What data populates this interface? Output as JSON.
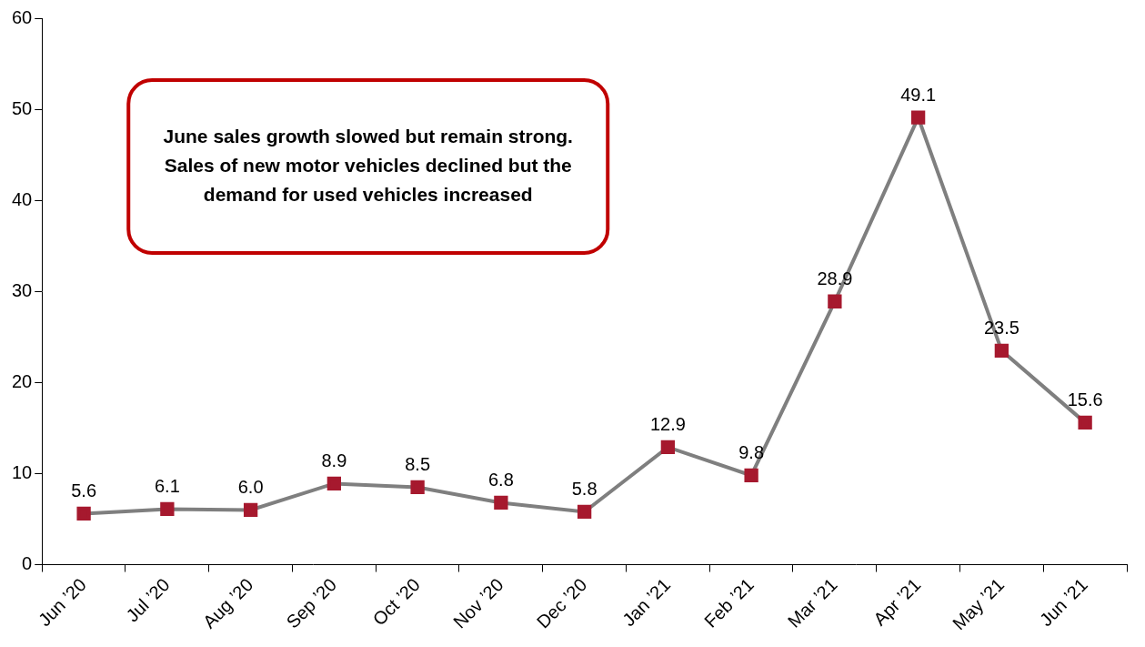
{
  "chart_data": {
    "type": "line",
    "annotation": "June sales growth slowed but remain strong. Sales of new motor vehicles declined but the demand for used vehicles increased",
    "categories": [
      "Jun ’20",
      "Jul ’20",
      "Aug ’20",
      "Sep ’20",
      "Oct ’20",
      "Nov ’20",
      "Dec ’20",
      "Jan ’21",
      "Feb ’21",
      "Mar ’21",
      "Apr ’21",
      "May ’21",
      "Jun ’21"
    ],
    "values": [
      5.6,
      6.1,
      6.0,
      8.9,
      8.5,
      6.8,
      5.8,
      12.9,
      9.8,
      28.9,
      49.1,
      23.5,
      15.6
    ],
    "value_labels": [
      "5.6",
      "6.1",
      "6.0",
      "8.9",
      "8.5",
      "6.8",
      "5.8",
      "12.9",
      "9.8",
      "28.9",
      "49.1",
      "23.5",
      "15.6"
    ],
    "color": "#7f7f7f",
    "marker": "square",
    "data_labels": true,
    "grid": false,
    "ylim": [
      0,
      60
    ],
    "yticks": [
      0,
      10,
      20,
      30,
      40,
      50,
      60
    ]
  }
}
